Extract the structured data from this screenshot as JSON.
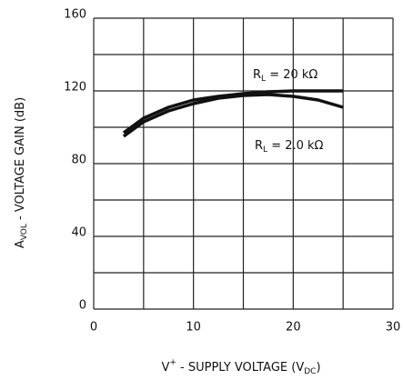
{
  "chart_data": {
    "type": "line",
    "x_label": [
      "V",
      "+",
      " - SUPPLY VOLTAGE (V",
      "DC",
      ")"
    ],
    "y_label": [
      "A",
      "VOL",
      " - VOLTAGE GAIN (dB)"
    ],
    "x": [
      3,
      5,
      7.5,
      10,
      12.5,
      15,
      17.5,
      20,
      22.5,
      25
    ],
    "series": [
      {
        "name": [
          "R",
          "L",
          " = 20 kΩ"
        ],
        "color": "#111111",
        "values": [
          97,
          105,
          111,
          115,
          117,
          118.5,
          119.5,
          120,
          120,
          120
        ]
      },
      {
        "name": [
          "R",
          "L",
          " = 2.0 kΩ"
        ],
        "color": "#111111",
        "values": [
          95,
          103,
          109,
          113,
          116,
          117.5,
          118,
          117,
          115,
          111
        ]
      }
    ],
    "xlim": [
      0,
      30
    ],
    "xticks": [
      0,
      10,
      20,
      30
    ],
    "ylim": [
      0,
      160
    ],
    "yticks": [
      0,
      40,
      80,
      120,
      160
    ],
    "grid": true
  }
}
